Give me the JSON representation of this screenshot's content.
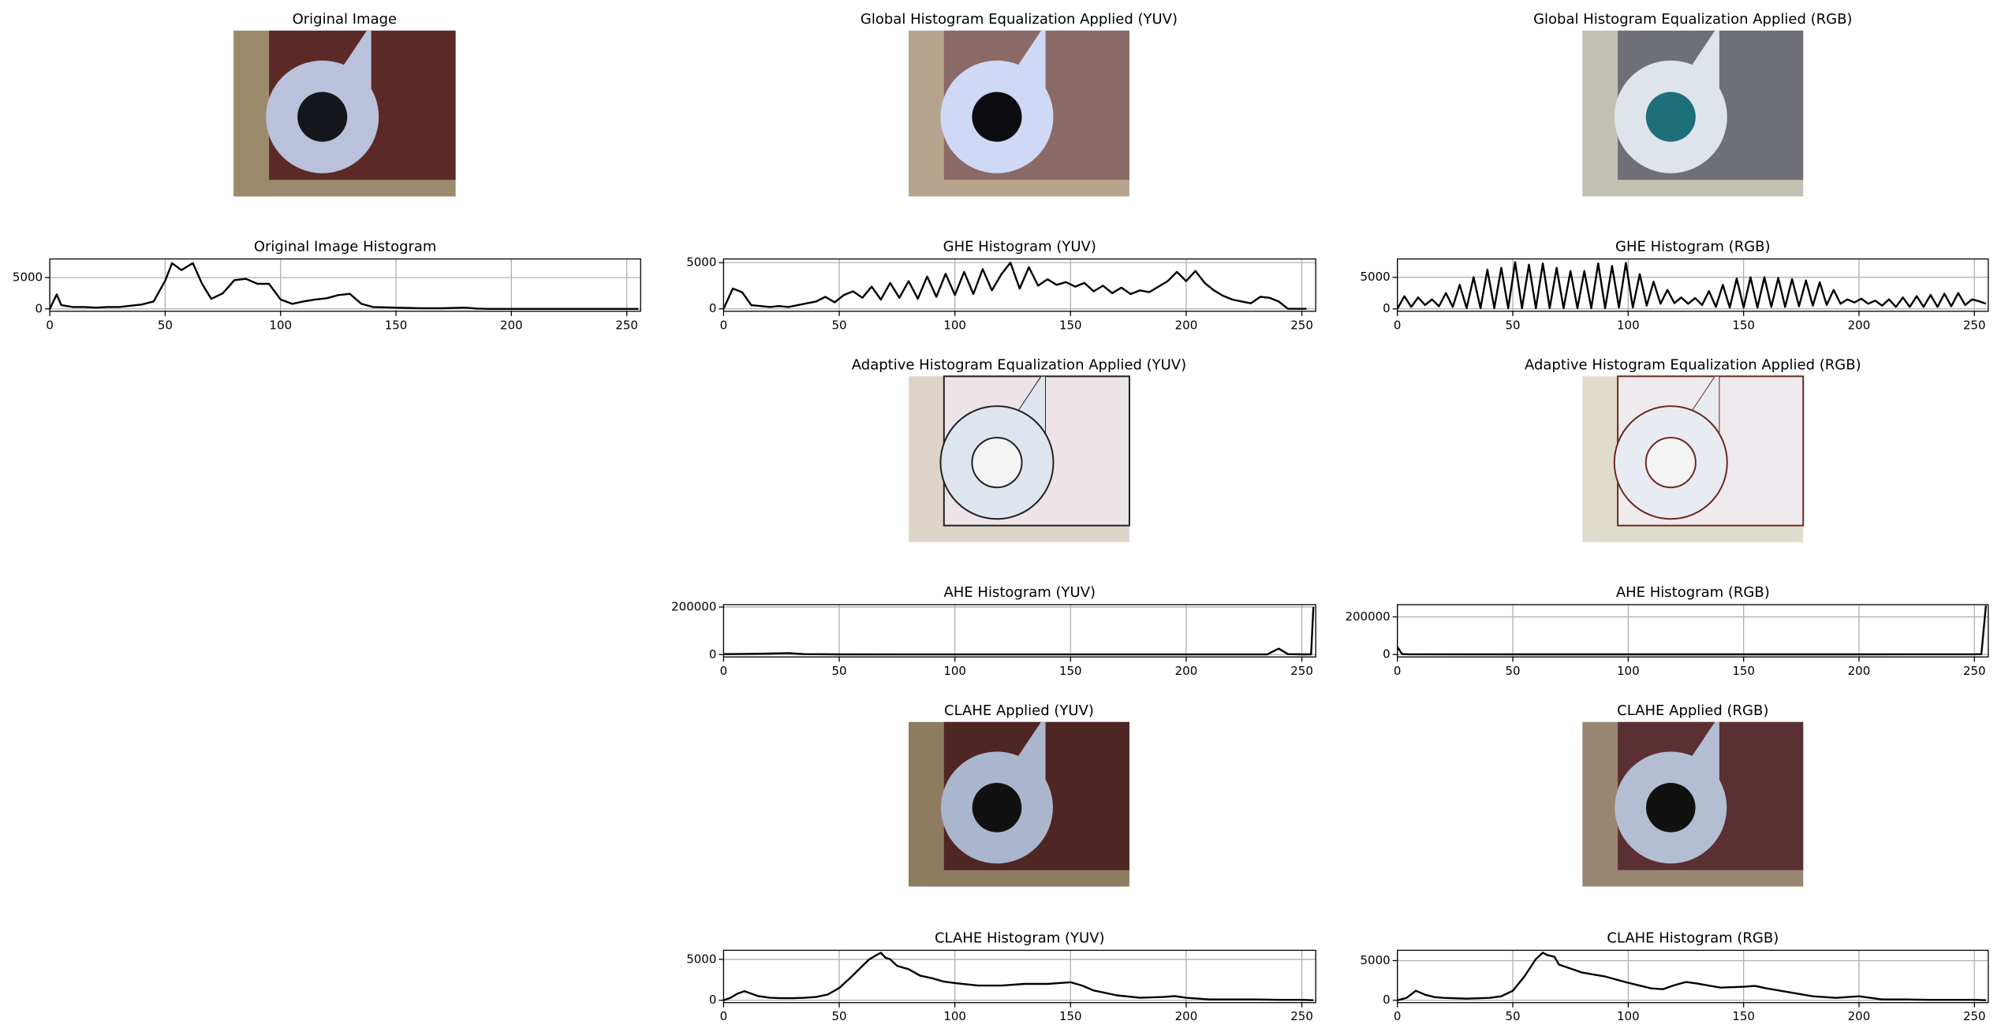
{
  "chart_data": [
    {
      "type": "image",
      "title": "Original Image"
    },
    {
      "type": "image",
      "title": "Global Histogram Equalization Applied (YUV)"
    },
    {
      "type": "image",
      "title": "Global Histogram Equalization Applied (RGB)"
    },
    {
      "type": "line",
      "title": "Original Image Histogram",
      "color": "#000000",
      "grid": true,
      "xlim": [
        0,
        256
      ],
      "xticks": [
        0,
        50,
        100,
        150,
        200,
        250
      ],
      "ylim": [
        -380,
        7980
      ],
      "yticks": [
        0,
        5000
      ],
      "x": [
        0,
        3,
        5,
        10,
        15,
        20,
        25,
        30,
        35,
        40,
        45,
        50,
        53,
        57,
        62,
        66,
        70,
        75,
        80,
        85,
        90,
        95,
        100,
        105,
        110,
        115,
        120,
        125,
        130,
        135,
        140,
        150,
        160,
        170,
        180,
        185,
        190,
        200,
        210,
        220,
        230,
        240,
        250,
        255
      ],
      "values": [
        0,
        2300,
        600,
        300,
        300,
        200,
        300,
        300,
        500,
        700,
        1200,
        4500,
        7300,
        6200,
        7300,
        4000,
        1600,
        2500,
        4600,
        4800,
        4000,
        4000,
        1500,
        800,
        1200,
        1500,
        1700,
        2200,
        2400,
        800,
        300,
        200,
        100,
        100,
        200,
        50,
        0,
        0,
        0,
        0,
        0,
        0,
        0,
        0
      ]
    },
    {
      "type": "line",
      "title": "GHE Histogram (YUV)",
      "color": "#000000",
      "grid": true,
      "xlim": [
        0,
        256
      ],
      "xticks": [
        0,
        50,
        100,
        150,
        200,
        250
      ],
      "ylim": [
        -260,
        5400
      ],
      "yticks": [
        0,
        5000
      ],
      "x": [
        0,
        4,
        8,
        12,
        16,
        20,
        24,
        28,
        32,
        36,
        40,
        44,
        48,
        52,
        56,
        60,
        64,
        68,
        72,
        76,
        80,
        84,
        88,
        92,
        96,
        100,
        104,
        108,
        112,
        116,
        120,
        124,
        128,
        132,
        136,
        140,
        144,
        148,
        152,
        156,
        160,
        164,
        168,
        172,
        176,
        180,
        184,
        188,
        192,
        196,
        200,
        204,
        208,
        212,
        216,
        220,
        224,
        228,
        232,
        236,
        240,
        244,
        248,
        252
      ],
      "values": [
        0,
        2200,
        1800,
        400,
        300,
        200,
        300,
        200,
        400,
        600,
        800,
        1300,
        700,
        1500,
        1900,
        1200,
        2400,
        1000,
        2800,
        1200,
        3000,
        1100,
        3500,
        1300,
        3800,
        1500,
        4000,
        1600,
        4300,
        2000,
        3700,
        5000,
        2200,
        4500,
        2500,
        3200,
        2600,
        2900,
        2400,
        2800,
        1900,
        2500,
        1700,
        2300,
        1600,
        2000,
        1800,
        2400,
        3000,
        4000,
        3000,
        4100,
        2800,
        2000,
        1400,
        1000,
        800,
        600,
        1300,
        1200,
        800,
        0,
        0,
        0
      ]
    },
    {
      "type": "line",
      "title": "GHE Histogram (RGB)",
      "color": "#000000",
      "grid": true,
      "xlim": [
        0,
        256
      ],
      "xticks": [
        0,
        50,
        100,
        150,
        200,
        250
      ],
      "ylim": [
        -380,
        7900
      ],
      "yticks": [
        0,
        5000
      ],
      "x": [
        0,
        3,
        6,
        9,
        12,
        15,
        18,
        21,
        24,
        27,
        30,
        33,
        36,
        39,
        42,
        45,
        48,
        51,
        54,
        57,
        60,
        63,
        66,
        69,
        72,
        75,
        78,
        81,
        84,
        87,
        90,
        93,
        96,
        99,
        102,
        105,
        108,
        111,
        114,
        117,
        120,
        123,
        126,
        129,
        132,
        135,
        138,
        141,
        144,
        147,
        150,
        153,
        156,
        159,
        162,
        165,
        168,
        171,
        174,
        177,
        180,
        183,
        186,
        189,
        192,
        195,
        198,
        201,
        204,
        207,
        210,
        213,
        216,
        219,
        222,
        225,
        228,
        231,
        234,
        237,
        240,
        243,
        246,
        249,
        252,
        255
      ],
      "values": [
        0,
        2000,
        300,
        1800,
        600,
        1500,
        400,
        2500,
        300,
        3800,
        100,
        5000,
        100,
        6200,
        100,
        6500,
        100,
        7400,
        100,
        7000,
        100,
        7200,
        100,
        6500,
        100,
        6000,
        100,
        6000,
        100,
        7200,
        100,
        6800,
        200,
        7300,
        200,
        5500,
        500,
        4300,
        800,
        3000,
        900,
        1800,
        800,
        1700,
        600,
        2800,
        300,
        3800,
        200,
        4800,
        200,
        5000,
        200,
        5000,
        300,
        4900,
        300,
        4700,
        400,
        4500,
        500,
        4200,
        600,
        3000,
        800,
        1500,
        1000,
        1600,
        800,
        1300,
        500,
        1500,
        300,
        1800,
        300,
        2000,
        300,
        2200,
        300,
        2400,
        400,
        2500,
        600,
        1500,
        1200,
        800
      ]
    },
    {
      "type": "image",
      "title": "Adaptive Histogram Equalization Applied (YUV)"
    },
    {
      "type": "image",
      "title": "Adaptive Histogram Equalization Applied (RGB)"
    },
    {
      "type": "line",
      "title": "AHE Histogram (YUV)",
      "color": "#000000",
      "grid": true,
      "xlim": [
        0,
        256
      ],
      "xticks": [
        0,
        50,
        100,
        150,
        200,
        250
      ],
      "ylim": [
        -10000,
        210000
      ],
      "yticks": [
        0,
        200000
      ],
      "x": [
        0,
        10,
        20,
        28,
        35,
        50,
        100,
        150,
        200,
        235,
        240,
        244,
        250,
        254,
        255
      ],
      "values": [
        2000,
        3000,
        4000,
        6000,
        2000,
        1000,
        500,
        500,
        500,
        1000,
        25000,
        2000,
        1000,
        1000,
        200000
      ]
    },
    {
      "type": "line",
      "title": "AHE Histogram (RGB)",
      "color": "#000000",
      "grid": true,
      "xlim": [
        0,
        256
      ],
      "xticks": [
        0,
        50,
        100,
        150,
        200,
        250
      ],
      "ylim": [
        -13000,
        265000
      ],
      "yticks": [
        0,
        200000
      ],
      "x": [
        0,
        2,
        5,
        50,
        100,
        150,
        200,
        250,
        253,
        255
      ],
      "values": [
        40000,
        3000,
        1000,
        500,
        500,
        500,
        500,
        1000,
        2000,
        260000
      ]
    },
    {
      "type": "image",
      "title": "CLAHE Applied (YUV)"
    },
    {
      "type": "image",
      "title": "CLAHE Applied (RGB)"
    },
    {
      "type": "line",
      "title": "CLAHE Histogram (YUV)",
      "color": "#000000",
      "grid": true,
      "xlim": [
        0,
        256
      ],
      "xticks": [
        0,
        50,
        100,
        150,
        200,
        250
      ],
      "ylim": [
        -290,
        6100
      ],
      "yticks": [
        0,
        5000
      ],
      "x": [
        0,
        3,
        6,
        9,
        12,
        15,
        20,
        25,
        30,
        35,
        40,
        45,
        50,
        55,
        60,
        63,
        66,
        68,
        70,
        72,
        75,
        80,
        85,
        90,
        95,
        100,
        110,
        120,
        130,
        140,
        145,
        150,
        155,
        160,
        170,
        180,
        190,
        195,
        200,
        210,
        220,
        230,
        240,
        250,
        255
      ],
      "values": [
        0,
        300,
        800,
        1100,
        800,
        500,
        300,
        250,
        250,
        300,
        400,
        700,
        1500,
        2800,
        4200,
        5000,
        5500,
        5800,
        5200,
        5000,
        4200,
        3800,
        3000,
        2700,
        2300,
        2100,
        1800,
        1800,
        2000,
        2000,
        2100,
        2200,
        1800,
        1200,
        600,
        300,
        400,
        500,
        300,
        100,
        100,
        100,
        50,
        50,
        0
      ]
    },
    {
      "type": "line",
      "title": "CLAHE Histogram (RGB)",
      "color": "#000000",
      "grid": true,
      "xlim": [
        0,
        256
      ],
      "xticks": [
        0,
        50,
        100,
        150,
        200,
        250
      ],
      "ylim": [
        -300,
        6300
      ],
      "yticks": [
        0,
        5000
      ],
      "x": [
        0,
        4,
        8,
        12,
        16,
        20,
        30,
        40,
        45,
        50,
        55,
        60,
        63,
        65,
        68,
        70,
        75,
        80,
        90,
        100,
        110,
        115,
        120,
        125,
        130,
        140,
        150,
        155,
        160,
        170,
        180,
        190,
        200,
        205,
        210,
        220,
        230,
        240,
        250,
        255
      ],
      "values": [
        0,
        300,
        1200,
        700,
        400,
        300,
        200,
        300,
        500,
        1200,
        3000,
        5200,
        6000,
        5700,
        5500,
        4500,
        4000,
        3500,
        3000,
        2200,
        1500,
        1400,
        1900,
        2300,
        2100,
        1600,
        1700,
        1800,
        1500,
        1000,
        500,
        300,
        500,
        300,
        100,
        100,
        50,
        50,
        50,
        0
      ]
    }
  ]
}
